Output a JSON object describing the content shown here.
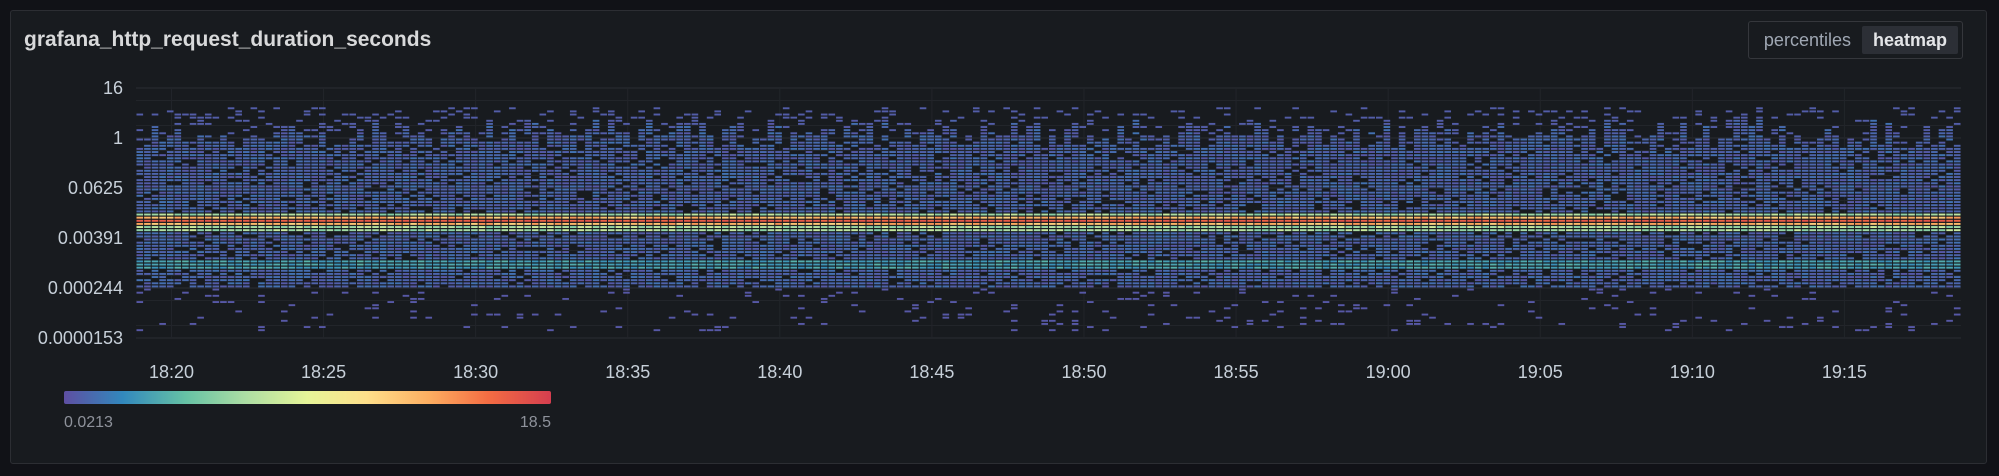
{
  "panel": {
    "title": "grafana_http_request_duration_seconds",
    "view_options": [
      "percentiles",
      "heatmap"
    ],
    "active_view": "heatmap"
  },
  "chart_data": {
    "type": "heatmap",
    "title": "grafana_http_request_duration_seconds",
    "y_scale": "log",
    "y_tick_labels": [
      "16",
      "1",
      "0.0625",
      "0.00391",
      "0.000244",
      "0.0000153"
    ],
    "y_tick_values": [
      16,
      1,
      0.0625,
      0.00391,
      0.000244,
      1.53e-05
    ],
    "x_tick_labels": [
      "18:20",
      "18:25",
      "18:30",
      "18:35",
      "18:40",
      "18:45",
      "18:50",
      "18:55",
      "19:00",
      "19:05",
      "19:10",
      "19:15"
    ],
    "x_range": [
      "18:18:50",
      "19:18:50"
    ],
    "y_range": [
      1.53e-05,
      16
    ],
    "hot_band_center": 0.009,
    "hot_band_max_count": 18.5,
    "secondary_band_center": 0.0008,
    "color_scale": {
      "min_label": "0.0213",
      "max_label": "18.5",
      "min": 0.0213,
      "max": 18.5,
      "scheme": "Spectral"
    },
    "grid": true,
    "legend_position": "bottom-left"
  },
  "colors": {
    "background": "#181b1f",
    "cell_low": "#5a4f9e",
    "cell_mid": "#3fa0a0",
    "cell_high": "#d8404b",
    "grid": "#2a2d33",
    "text": "#c7d0d9"
  }
}
